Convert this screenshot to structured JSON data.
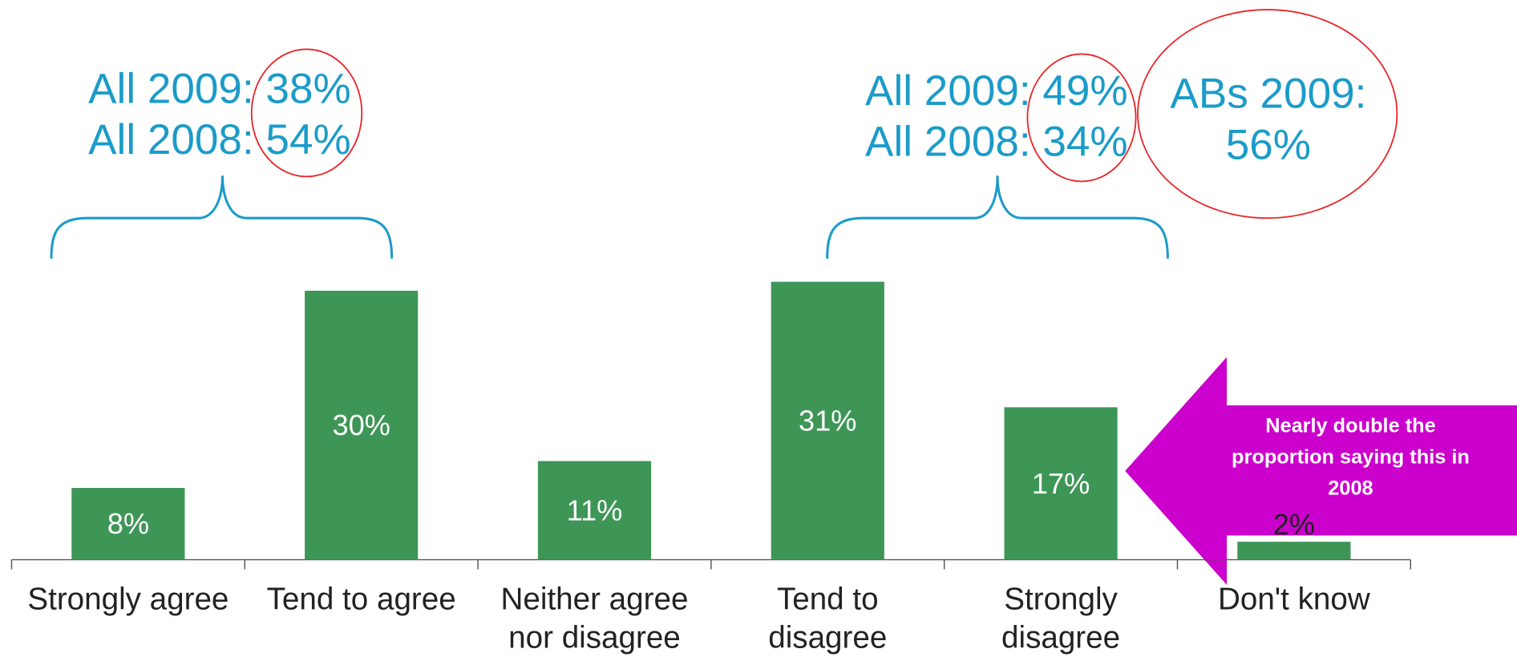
{
  "chart_data": {
    "type": "bar",
    "categories": [
      "Strongly agree",
      "Tend to agree",
      "Neither agree\nnor disagree",
      "Tend to\ndisagree",
      "Strongly\ndisagree",
      "Don't know"
    ],
    "values": [
      8,
      30,
      11,
      31,
      17,
      2
    ],
    "value_labels": [
      "8%",
      "30%",
      "11%",
      "31%",
      "17%",
      "2%"
    ],
    "color": "#3d9656",
    "annotations": [
      "All 2009: 38%",
      "All 2008: 54%",
      "All 2009: 49%",
      "All 2008: 34%",
      "ABs 2009:\n56%",
      "Nearly double the\nproportion saying this in\n2008"
    ]
  }
}
